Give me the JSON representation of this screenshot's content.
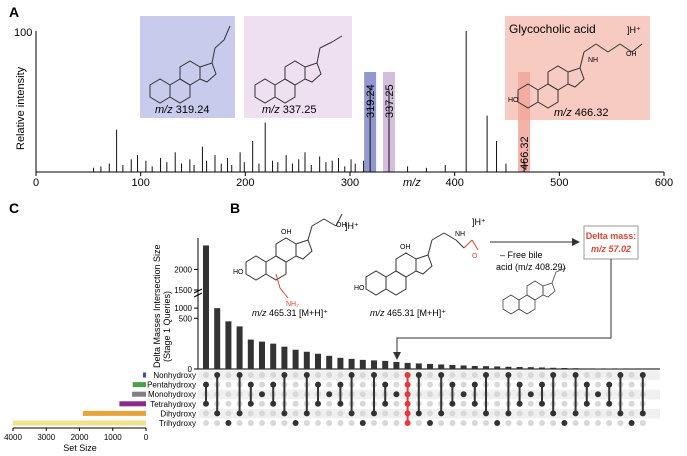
{
  "panels": {
    "a": "A",
    "b": "B",
    "c": "C"
  },
  "chart_data": [
    {
      "type": "bar",
      "panel": "A",
      "title": "",
      "xlabel": "m/z",
      "ylabel": "Relative intensity",
      "xlim": [
        0,
        600
      ],
      "ylim": [
        0,
        100
      ],
      "xticks": [
        0,
        100,
        200,
        300,
        400,
        500,
        600
      ],
      "yticks_labeled": [
        100
      ],
      "x": [
        55,
        62,
        70,
        77,
        83,
        91,
        97,
        105,
        111,
        119,
        125,
        133,
        139,
        147,
        151,
        159,
        163,
        171,
        177,
        183,
        187,
        195,
        199,
        207,
        213,
        219,
        226,
        231,
        239,
        245,
        251,
        257,
        263,
        271,
        277,
        283,
        289,
        295,
        301,
        305,
        313,
        319.24,
        337.25,
        355,
        373,
        391,
        411,
        431,
        440,
        449,
        466.32
      ],
      "y": [
        3,
        4,
        6,
        30,
        5,
        9,
        12,
        8,
        4,
        10,
        7,
        14,
        6,
        9,
        5,
        18,
        8,
        12,
        6,
        10,
        5,
        14,
        7,
        22,
        6,
        35,
        8,
        7,
        12,
        6,
        9,
        14,
        5,
        11,
        7,
        8,
        10,
        4,
        9,
        6,
        8,
        60,
        58,
        4,
        3,
        5,
        100,
        40,
        22,
        6,
        8
      ],
      "highlighted_peaks": [
        {
          "mz": "319.24",
          "color": "#7f86c7"
        },
        {
          "mz": "337.25",
          "color": "#cdb3d6"
        },
        {
          "mz": "466.32",
          "color": "#f2a69a"
        }
      ],
      "annotations": [
        {
          "label_prefix": "m/z",
          "label_value": "319.24",
          "box_color": "#c9cbec"
        },
        {
          "label_prefix": "m/z",
          "label_value": "337.25",
          "box_color": "#eee0f0"
        },
        {
          "title": "Glycocholic acid",
          "charge": "]H⁺",
          "label_prefix": "m/z",
          "label_value": "466.32",
          "box_color": "#f8cbc2"
        }
      ]
    },
    {
      "type": "bar",
      "panel": "C-intersections",
      "ylabel_line1": "Delta Masses Intersection Size",
      "ylabel_line2": "(Stage 1 Queries)",
      "axis_break": true,
      "yticks": [
        0,
        500,
        1000,
        1500,
        2000
      ],
      "values": [
        2350,
        600,
        470,
        420,
        290,
        270,
        250,
        220,
        190,
        170,
        150,
        130,
        110,
        100,
        90,
        85,
        80,
        70,
        60,
        55,
        50,
        45,
        40,
        35,
        30,
        28,
        25,
        22,
        20,
        18,
        15,
        12,
        10,
        8,
        6,
        5,
        4,
        3,
        2,
        1
      ],
      "highlight_index": 18,
      "highlight_color": "#e8363a"
    },
    {
      "type": "bar",
      "panel": "C-set-size",
      "xlabel": "Set Size",
      "xticks": [
        4000,
        3000,
        2000,
        1000,
        0
      ],
      "categories": [
        "Nonhydroxy",
        "Pentahydroxy",
        "Monohydroxy",
        "Tetrahydroxy",
        "Dihydroxy",
        "Trihydroxy"
      ],
      "values": [
        90,
        400,
        420,
        800,
        1900,
        4000
      ],
      "colors": [
        "#3a4ba8",
        "#4aa04a",
        "#808080",
        "#8a2c8c",
        "#e8a33a",
        "#f2e28a"
      ]
    }
  ],
  "panel_b": {
    "charge": "]H⁺",
    "left_caption_prefix": "m/z",
    "left_caption_value": "465.31 [M+H]⁺",
    "right_caption_prefix": "m/z",
    "right_caption_value": "465.31 [M+H]⁺",
    "loss_line1": "– Free bile",
    "loss_line2": "acid (m/z 408.29)",
    "delta_title": "Delta mass:",
    "delta_value": "m/z 57.02",
    "labels": {
      "oh": "OH",
      "ho": "HO",
      "o": "O",
      "nh": "NH",
      "nh2": "NH₂",
      "h": "H"
    }
  }
}
